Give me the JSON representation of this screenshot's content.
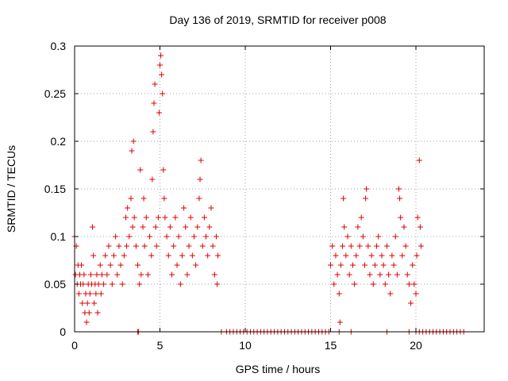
{
  "chart_data": {
    "type": "scatter",
    "title": "Day 136 of 2019, SRMTID for receiver p008",
    "xlabel": "GPS time / hours",
    "ylabel": "SRMTID / TECUs",
    "xlim": [
      0,
      24
    ],
    "ylim": [
      0,
      0.3
    ],
    "x_ticks": [
      0,
      5,
      10,
      15,
      20
    ],
    "y_ticks": [
      0,
      0.05,
      0.1,
      0.15,
      0.2,
      0.25,
      0.3
    ],
    "x_tick_labels": [
      "0",
      "5",
      "10",
      "15",
      "20"
    ],
    "y_tick_labels": [
      "0",
      "0.05",
      "0.1",
      "0.15",
      "0.2",
      "0.25",
      "0.3"
    ],
    "grid": true,
    "marker": "+",
    "series_color": "#e00000",
    "series": [
      {
        "name": "SRMTID",
        "points": [
          [
            0.0,
            0.1
          ],
          [
            0.05,
            0.06
          ],
          [
            0.1,
            0.09
          ],
          [
            0.15,
            0.05
          ],
          [
            0.2,
            0.07
          ],
          [
            0.25,
            0.04
          ],
          [
            0.3,
            0.06
          ],
          [
            0.35,
            0.05
          ],
          [
            0.4,
            0.07
          ],
          [
            0.45,
            0.03
          ],
          [
            0.5,
            0.05
          ],
          [
            0.55,
            0.06
          ],
          [
            0.6,
            0.02
          ],
          [
            0.65,
            0.04
          ],
          [
            0.7,
            0.01
          ],
          [
            0.75,
            0.03
          ],
          [
            0.8,
            0.05
          ],
          [
            0.85,
            0.02
          ],
          [
            0.9,
            0.04
          ],
          [
            0.95,
            0.06
          ],
          [
            1.0,
            0.05
          ],
          [
            1.05,
            0.11
          ],
          [
            1.1,
            0.08
          ],
          [
            1.15,
            0.03
          ],
          [
            1.2,
            0.05
          ],
          [
            1.25,
            0.04
          ],
          [
            1.3,
            0.06
          ],
          [
            1.35,
            0.02
          ],
          [
            1.4,
            0.05
          ],
          [
            1.5,
            0.07
          ],
          [
            1.55,
            0.04
          ],
          [
            1.6,
            0.06
          ],
          [
            1.7,
            0.05
          ],
          [
            1.8,
            0.08
          ],
          [
            1.9,
            0.06
          ],
          [
            2.0,
            0.09
          ],
          [
            2.1,
            0.07
          ],
          [
            2.2,
            0.05
          ],
          [
            2.3,
            0.08
          ],
          [
            2.4,
            0.1
          ],
          [
            2.5,
            0.06
          ],
          [
            2.6,
            0.09
          ],
          [
            2.7,
            0.07
          ],
          [
            2.8,
            0.05
          ],
          [
            2.9,
            0.08
          ],
          [
            3.0,
            0.12
          ],
          [
            3.05,
            0.09
          ],
          [
            3.1,
            0.13
          ],
          [
            3.2,
            0.1
          ],
          [
            3.3,
            0.14
          ],
          [
            3.35,
            0.19
          ],
          [
            3.4,
            0.11
          ],
          [
            3.45,
            0.2
          ],
          [
            3.5,
            0.12
          ],
          [
            3.6,
            0.09
          ],
          [
            3.7,
            0.07
          ],
          [
            3.8,
            0.05
          ],
          [
            3.85,
            0.17
          ],
          [
            3.9,
            0.06
          ],
          [
            4.0,
            0.11
          ],
          [
            4.05,
            0.14
          ],
          [
            4.1,
            0.09
          ],
          [
            4.2,
            0.12
          ],
          [
            4.3,
            0.06
          ],
          [
            4.4,
            0.1
          ],
          [
            4.5,
            0.08
          ],
          [
            4.55,
            0.16
          ],
          [
            4.6,
            0.21
          ],
          [
            4.65,
            0.24
          ],
          [
            4.7,
            0.26
          ],
          [
            4.75,
            0.11
          ],
          [
            4.8,
            0.09
          ],
          [
            4.9,
            0.12
          ],
          [
            4.95,
            0.23
          ],
          [
            5.0,
            0.28
          ],
          [
            5.05,
            0.29
          ],
          [
            5.1,
            0.27
          ],
          [
            5.15,
            0.25
          ],
          [
            5.2,
            0.17
          ],
          [
            5.25,
            0.14
          ],
          [
            5.3,
            0.12
          ],
          [
            5.4,
            0.1
          ],
          [
            5.5,
            0.08
          ],
          [
            5.6,
            0.11
          ],
          [
            5.7,
            0.06
          ],
          [
            5.8,
            0.09
          ],
          [
            5.9,
            0.12
          ],
          [
            6.0,
            0.07
          ],
          [
            6.1,
            0.1
          ],
          [
            6.2,
            0.05
          ],
          [
            6.3,
            0.08
          ],
          [
            6.4,
            0.13
          ],
          [
            6.5,
            0.11
          ],
          [
            6.6,
            0.06
          ],
          [
            6.7,
            0.09
          ],
          [
            6.8,
            0.12
          ],
          [
            6.9,
            0.08
          ],
          [
            7.0,
            0.1
          ],
          [
            7.1,
            0.07
          ],
          [
            7.2,
            0.11
          ],
          [
            7.3,
            0.14
          ],
          [
            7.35,
            0.16
          ],
          [
            7.4,
            0.18
          ],
          [
            7.5,
            0.09
          ],
          [
            7.6,
            0.12
          ],
          [
            7.7,
            0.1
          ],
          [
            7.8,
            0.08
          ],
          [
            7.9,
            0.11
          ],
          [
            8.0,
            0.13
          ],
          [
            8.1,
            0.09
          ],
          [
            8.2,
            0.06
          ],
          [
            8.3,
            0.1
          ],
          [
            8.35,
            0.05
          ],
          [
            8.4,
            0.08
          ],
          [
            3.7,
            0.0
          ],
          [
            3.75,
            0.0
          ],
          [
            8.6,
            0.0
          ],
          [
            8.9,
            0.0
          ],
          [
            9.1,
            0.0
          ],
          [
            9.3,
            0.0
          ],
          [
            9.5,
            0.0
          ],
          [
            9.7,
            0.0
          ],
          [
            9.9,
            0.0
          ],
          [
            10.1,
            0.0
          ],
          [
            10.3,
            0.0
          ],
          [
            10.5,
            0.0
          ],
          [
            10.7,
            0.0
          ],
          [
            10.9,
            0.0
          ],
          [
            11.1,
            0.0
          ],
          [
            11.3,
            0.0
          ],
          [
            11.5,
            0.0
          ],
          [
            11.7,
            0.0
          ],
          [
            11.9,
            0.0
          ],
          [
            12.1,
            0.0
          ],
          [
            12.3,
            0.0
          ],
          [
            12.5,
            0.0
          ],
          [
            12.7,
            0.0
          ],
          [
            12.9,
            0.0
          ],
          [
            13.1,
            0.0
          ],
          [
            13.3,
            0.0
          ],
          [
            13.5,
            0.0
          ],
          [
            13.7,
            0.0
          ],
          [
            13.9,
            0.0
          ],
          [
            14.1,
            0.0
          ],
          [
            14.3,
            0.0
          ],
          [
            14.5,
            0.0
          ],
          [
            14.7,
            0.0
          ],
          [
            14.9,
            0.0
          ],
          [
            15.5,
            0.0
          ],
          [
            16.2,
            0.0
          ],
          [
            18.3,
            0.0
          ],
          [
            19.6,
            0.0
          ],
          [
            20.0,
            0.0
          ],
          [
            20.2,
            0.0
          ],
          [
            20.4,
            0.0
          ],
          [
            20.6,
            0.0
          ],
          [
            20.8,
            0.0
          ],
          [
            21.0,
            0.0
          ],
          [
            21.2,
            0.0
          ],
          [
            21.4,
            0.0
          ],
          [
            21.6,
            0.0
          ],
          [
            21.8,
            0.0
          ],
          [
            22.0,
            0.0
          ],
          [
            22.2,
            0.0
          ],
          [
            22.4,
            0.0
          ],
          [
            22.6,
            0.0
          ],
          [
            22.8,
            0.0
          ],
          [
            15.0,
            0.07
          ],
          [
            15.1,
            0.09
          ],
          [
            15.2,
            0.05
          ],
          [
            15.3,
            0.08
          ],
          [
            15.4,
            0.06
          ],
          [
            15.5,
            0.04
          ],
          [
            15.55,
            0.01
          ],
          [
            15.6,
            0.07
          ],
          [
            15.7,
            0.09
          ],
          [
            15.75,
            0.14
          ],
          [
            15.8,
            0.11
          ],
          [
            15.9,
            0.08
          ],
          [
            16.0,
            0.1
          ],
          [
            16.1,
            0.06
          ],
          [
            16.2,
            0.09
          ],
          [
            16.3,
            0.07
          ],
          [
            16.4,
            0.05
          ],
          [
            16.5,
            0.08
          ],
          [
            16.6,
            0.11
          ],
          [
            16.7,
            0.09
          ],
          [
            16.8,
            0.12
          ],
          [
            16.9,
            0.1
          ],
          [
            17.0,
            0.07
          ],
          [
            17.05,
            0.14
          ],
          [
            17.1,
            0.15
          ],
          [
            17.2,
            0.09
          ],
          [
            17.3,
            0.06
          ],
          [
            17.4,
            0.08
          ],
          [
            17.5,
            0.05
          ],
          [
            17.6,
            0.07
          ],
          [
            17.7,
            0.09
          ],
          [
            17.8,
            0.1
          ],
          [
            17.9,
            0.06
          ],
          [
            18.0,
            0.08
          ],
          [
            18.1,
            0.07
          ],
          [
            18.2,
            0.05
          ],
          [
            18.3,
            0.09
          ],
          [
            18.4,
            0.06
          ],
          [
            18.5,
            0.04
          ],
          [
            18.6,
            0.08
          ],
          [
            18.7,
            0.07
          ],
          [
            18.8,
            0.1
          ],
          [
            18.9,
            0.06
          ],
          [
            19.0,
            0.15
          ],
          [
            19.05,
            0.14
          ],
          [
            19.1,
            0.12
          ],
          [
            19.2,
            0.08
          ],
          [
            19.3,
            0.11
          ],
          [
            19.4,
            0.09
          ],
          [
            19.5,
            0.06
          ],
          [
            19.6,
            0.05
          ],
          [
            19.7,
            0.03
          ],
          [
            19.8,
            0.07
          ],
          [
            19.9,
            0.05
          ],
          [
            20.0,
            0.04
          ],
          [
            20.05,
            0.08
          ],
          [
            20.1,
            0.12
          ],
          [
            20.2,
            0.18
          ],
          [
            20.25,
            0.11
          ],
          [
            20.3,
            0.09
          ]
        ]
      }
    ]
  }
}
